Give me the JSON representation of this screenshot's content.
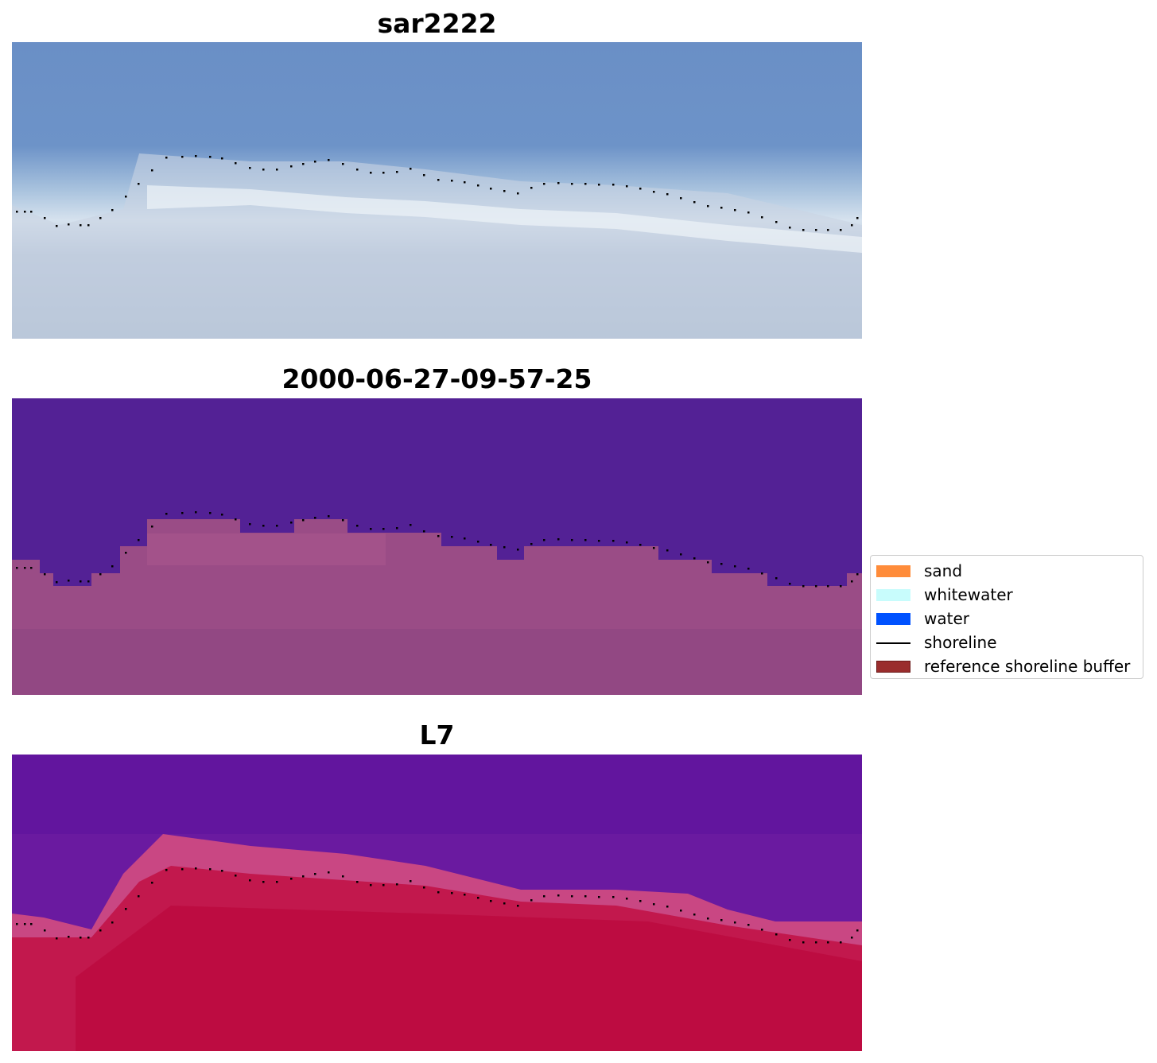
{
  "panels": [
    {
      "title": "sar2222",
      "kind": "rgb"
    },
    {
      "title": "2000-06-27-09-57-25",
      "kind": "classified"
    },
    {
      "title": "L7",
      "kind": "index"
    }
  ],
  "legend": {
    "items": [
      {
        "label": "sand",
        "type": "patch",
        "color": "#ff8c3a"
      },
      {
        "label": "whitewater",
        "type": "patch",
        "color": "#c8fcfc"
      },
      {
        "label": "water",
        "type": "patch",
        "color": "#0052ff"
      },
      {
        "label": "shoreline",
        "type": "line",
        "color": "#000000"
      },
      {
        "label": "reference shoreline buffer",
        "type": "patch",
        "color": "#9a2d2d"
      }
    ]
  }
}
